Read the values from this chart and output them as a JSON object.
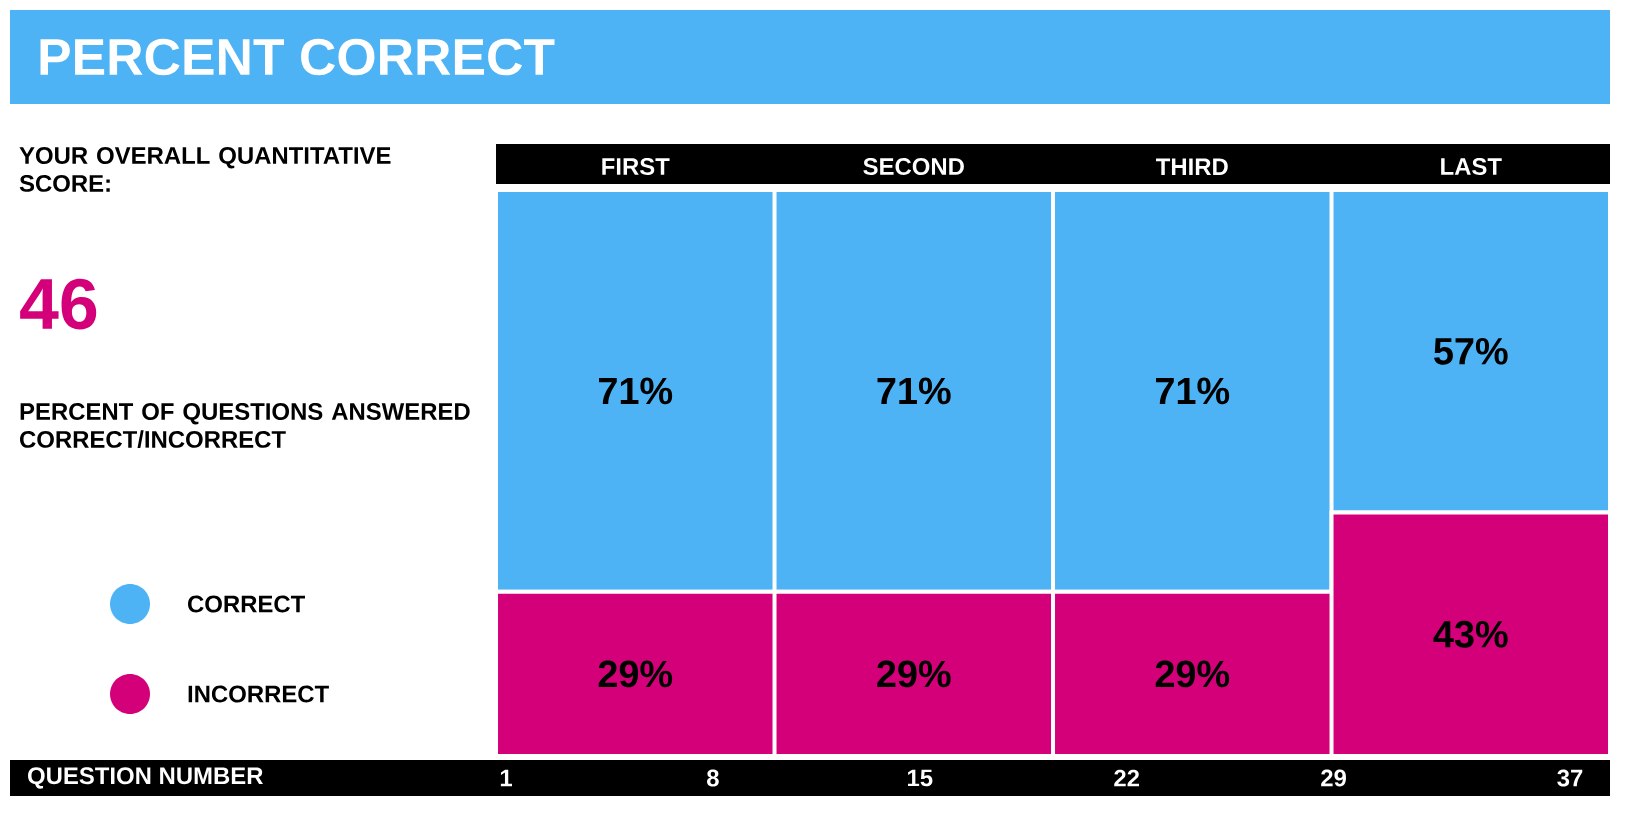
{
  "chart_data": {
    "type": "bar",
    "stacked": true,
    "title": "PERCENT CORRECT",
    "categories": [
      "FIRST",
      "SECOND",
      "THIRD",
      "LAST"
    ],
    "series": [
      {
        "name": "INCORRECT",
        "color": "#d4007a",
        "values": [
          29,
          29,
          29,
          43
        ],
        "value_labels": [
          "29%",
          "29%",
          "29%",
          "43%"
        ]
      },
      {
        "name": "CORRECT",
        "color": "#4db3f5",
        "values": [
          71,
          71,
          71,
          57
        ],
        "value_labels": [
          "71%",
          "71%",
          "71%",
          "57%"
        ]
      }
    ],
    "tick_labels": "x",
    "legend": "left",
    "x2label": "QUESTION  NUMBER",
    "x2lim": [
      1,
      37
    ],
    "x2ticks": [
      1,
      8,
      15,
      22,
      29,
      37
    ],
    "annotations": [
      "YOUR OVERALL QUANTITATIVE SCORE:",
      "46",
      "PERCENT OF QUESTIONS ANSWERED CORRECT/INCORRECT"
    ]
  }
}
